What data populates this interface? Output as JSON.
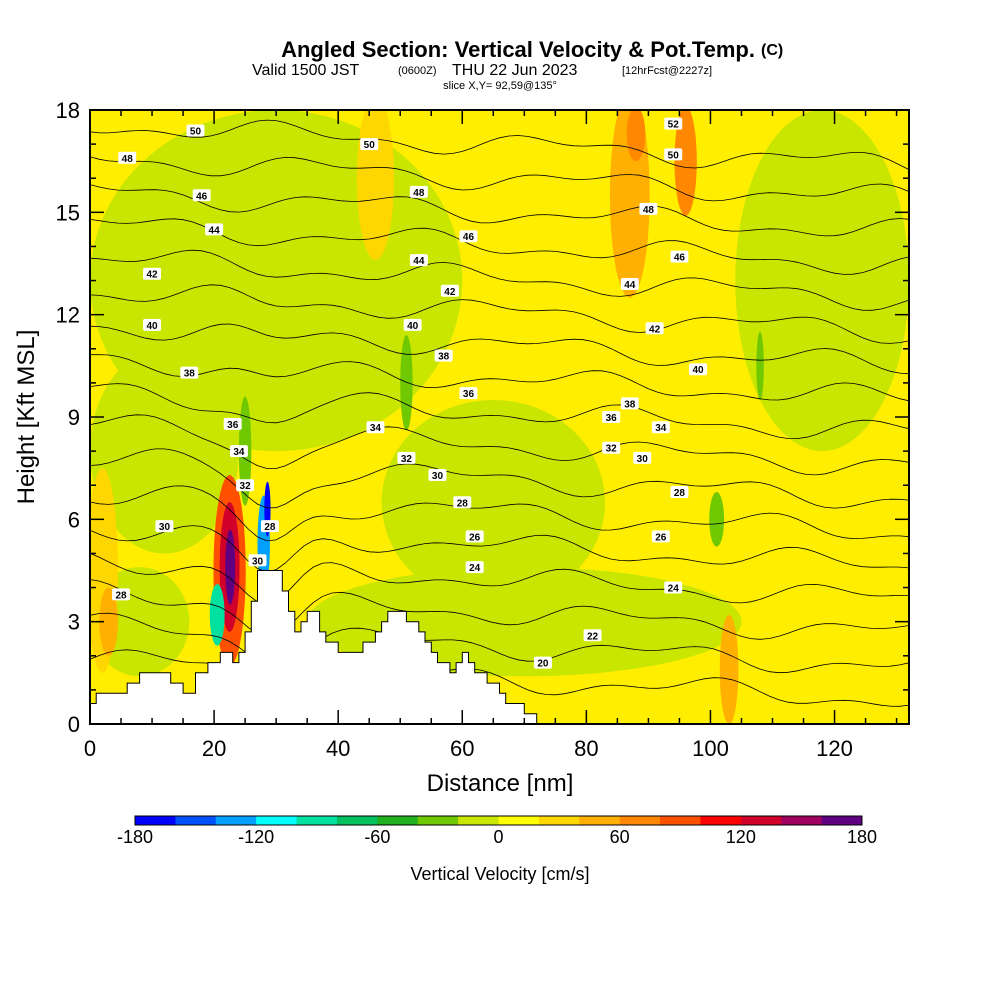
{
  "chart_data": {
    "type": "heatmap",
    "title_main": "Angled Section: Vertical Velocity & Pot.Temp.",
    "title_units": "(C)",
    "subtitle_valid": "Valid 1500 JST",
    "subtitle_z": "(0600Z)",
    "subtitle_date": "THU 22 Jun 2023",
    "subtitle_fcst": "[12hrFcst@2227z]",
    "slice_label": "slice X,Y= 92,59@135°",
    "xlabel": "Distance [nm]",
    "ylabel": "Height [Kft MSL]",
    "xlim": [
      0,
      132
    ],
    "ylim": [
      0,
      18
    ],
    "x_ticks": [
      0,
      20,
      40,
      60,
      80,
      100,
      120
    ],
    "y_ticks": [
      0,
      3,
      6,
      9,
      12,
      15,
      18
    ],
    "colorbar": {
      "label": "Vertical Velocity [cm/s]",
      "ticks": [
        -180,
        -120,
        -60,
        0,
        60,
        120,
        180
      ],
      "range": [
        -180,
        180
      ],
      "colors": [
        "#0000ff",
        "#0050ff",
        "#00a0ff",
        "#00ffff",
        "#00e0a0",
        "#00c060",
        "#20b020",
        "#70c800",
        "#c8e600",
        "#ffff00",
        "#ffd700",
        "#ffb000",
        "#ff8800",
        "#ff5000",
        "#ff0000",
        "#d0002a",
        "#a00060",
        "#600080"
      ]
    },
    "theta_levels": [
      20,
      22,
      24,
      26,
      28,
      30,
      32,
      34,
      36,
      38,
      40,
      42,
      44,
      46,
      48,
      50,
      52
    ],
    "contour_labels": [
      {
        "x": 17,
        "y": 17.4,
        "text": "50"
      },
      {
        "x": 6,
        "y": 16.6,
        "text": "48"
      },
      {
        "x": 18,
        "y": 15.5,
        "text": "46"
      },
      {
        "x": 20,
        "y": 14.5,
        "text": "44"
      },
      {
        "x": 10,
        "y": 13.2,
        "text": "42"
      },
      {
        "x": 10,
        "y": 11.7,
        "text": "40"
      },
      {
        "x": 16,
        "y": 10.3,
        "text": "38"
      },
      {
        "x": 23,
        "y": 8.8,
        "text": "36"
      },
      {
        "x": 24,
        "y": 8.0,
        "text": "34"
      },
      {
        "x": 25,
        "y": 7.0,
        "text": "32"
      },
      {
        "x": 12,
        "y": 5.8,
        "text": "30"
      },
      {
        "x": 5,
        "y": 3.8,
        "text": "28"
      },
      {
        "x": 29,
        "y": 5.8,
        "text": "28"
      },
      {
        "x": 27,
        "y": 4.8,
        "text": "30"
      },
      {
        "x": 45,
        "y": 17.0,
        "text": "50"
      },
      {
        "x": 53,
        "y": 15.6,
        "text": "48"
      },
      {
        "x": 61,
        "y": 14.3,
        "text": "46"
      },
      {
        "x": 53,
        "y": 13.6,
        "text": "44"
      },
      {
        "x": 58,
        "y": 12.7,
        "text": "42"
      },
      {
        "x": 52,
        "y": 11.7,
        "text": "40"
      },
      {
        "x": 57,
        "y": 10.8,
        "text": "38"
      },
      {
        "x": 61,
        "y": 9.7,
        "text": "36"
      },
      {
        "x": 46,
        "y": 8.7,
        "text": "34"
      },
      {
        "x": 51,
        "y": 7.8,
        "text": "32"
      },
      {
        "x": 56,
        "y": 7.3,
        "text": "30"
      },
      {
        "x": 60,
        "y": 6.5,
        "text": "28"
      },
      {
        "x": 62,
        "y": 5.5,
        "text": "26"
      },
      {
        "x": 62,
        "y": 4.6,
        "text": "24"
      },
      {
        "x": 81,
        "y": 2.6,
        "text": "22"
      },
      {
        "x": 73,
        "y": 1.8,
        "text": "20"
      },
      {
        "x": 94,
        "y": 17.6,
        "text": "52"
      },
      {
        "x": 94,
        "y": 16.7,
        "text": "50"
      },
      {
        "x": 90,
        "y": 15.1,
        "text": "48"
      },
      {
        "x": 95,
        "y": 13.7,
        "text": "46"
      },
      {
        "x": 87,
        "y": 12.9,
        "text": "44"
      },
      {
        "x": 91,
        "y": 11.6,
        "text": "42"
      },
      {
        "x": 98,
        "y": 10.4,
        "text": "40"
      },
      {
        "x": 87,
        "y": 9.4,
        "text": "38"
      },
      {
        "x": 84,
        "y": 9.0,
        "text": "36"
      },
      {
        "x": 92,
        "y": 8.7,
        "text": "34"
      },
      {
        "x": 84,
        "y": 8.1,
        "text": "32"
      },
      {
        "x": 89,
        "y": 7.8,
        "text": "30"
      },
      {
        "x": 95,
        "y": 6.8,
        "text": "28"
      },
      {
        "x": 92,
        "y": 5.5,
        "text": "26"
      },
      {
        "x": 94,
        "y": 4.0,
        "text": "24"
      }
    ],
    "terrain_profile": [
      [
        0,
        0
      ],
      [
        0,
        0.6
      ],
      [
        1,
        0.6
      ],
      [
        1,
        0.9
      ],
      [
        6,
        0.9
      ],
      [
        6,
        1.2
      ],
      [
        8,
        1.2
      ],
      [
        8,
        1.5
      ],
      [
        13,
        1.5
      ],
      [
        13,
        1.2
      ],
      [
        15,
        1.2
      ],
      [
        15,
        0.9
      ],
      [
        17,
        0.9
      ],
      [
        17,
        1.5
      ],
      [
        19,
        1.5
      ],
      [
        19,
        1.8
      ],
      [
        21,
        1.8
      ],
      [
        21,
        2.1
      ],
      [
        23,
        2.1
      ],
      [
        23,
        1.8
      ],
      [
        24,
        1.8
      ],
      [
        24,
        2.1
      ],
      [
        25,
        2.1
      ],
      [
        25,
        2.7
      ],
      [
        26,
        2.7
      ],
      [
        26,
        3.6
      ],
      [
        27,
        3.6
      ],
      [
        27,
        4.5
      ],
      [
        31,
        4.5
      ],
      [
        31,
        3.9
      ],
      [
        32,
        3.9
      ],
      [
        32,
        3.3
      ],
      [
        33,
        3.3
      ],
      [
        33,
        2.7
      ],
      [
        34,
        2.7
      ],
      [
        34,
        3.0
      ],
      [
        35,
        3.0
      ],
      [
        35,
        3.3
      ],
      [
        37,
        3.3
      ],
      [
        37,
        2.7
      ],
      [
        38,
        2.7
      ],
      [
        38,
        2.4
      ],
      [
        40,
        2.4
      ],
      [
        40,
        2.1
      ],
      [
        44,
        2.1
      ],
      [
        44,
        2.4
      ],
      [
        46,
        2.4
      ],
      [
        46,
        2.7
      ],
      [
        47,
        2.7
      ],
      [
        47,
        3.0
      ],
      [
        48,
        3.0
      ],
      [
        48,
        3.3
      ],
      [
        51,
        3.3
      ],
      [
        51,
        3.0
      ],
      [
        53,
        3.0
      ],
      [
        53,
        2.7
      ],
      [
        54,
        2.7
      ],
      [
        54,
        2.4
      ],
      [
        55,
        2.4
      ],
      [
        55,
        2.1
      ],
      [
        56,
        2.1
      ],
      [
        56,
        1.8
      ],
      [
        58,
        1.8
      ],
      [
        58,
        1.5
      ],
      [
        59,
        1.5
      ],
      [
        59,
        1.8
      ],
      [
        60,
        1.8
      ],
      [
        60,
        2.1
      ],
      [
        61,
        2.1
      ],
      [
        61,
        1.8
      ],
      [
        62,
        1.8
      ],
      [
        62,
        1.5
      ],
      [
        64,
        1.5
      ],
      [
        64,
        1.2
      ],
      [
        66,
        1.2
      ],
      [
        66,
        0.9
      ],
      [
        67,
        0.9
      ],
      [
        67,
        0.6
      ],
      [
        70,
        0.6
      ],
      [
        70,
        0.3
      ],
      [
        72,
        0.3
      ],
      [
        72,
        0
      ],
      [
        132,
        0
      ]
    ]
  }
}
